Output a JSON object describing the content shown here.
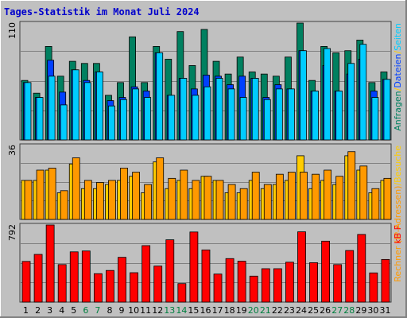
{
  "title": "Tages-Statistik im Monat Juli 2024",
  "colors": {
    "frame": "#c0c0c0",
    "plot_bg": "#c0c0c0",
    "grid": "#808080",
    "title": "#0000cc",
    "weekday_label": "#000000",
    "weekend_label": "#008040",
    "anfragen": "#008060",
    "dateien": "#0040ff",
    "seiten": "#00ccff",
    "besuche": "#ffcc00",
    "rechner": "#ff9900",
    "kb": "#ff0000"
  },
  "chart_data": [
    {
      "type": "bar",
      "panel": "top",
      "ylabel_tick": "110",
      "ylim": [
        0,
        110
      ],
      "legend_text": [
        "Anfragen",
        "/",
        "Dateien",
        "/",
        "Seiten"
      ],
      "categories": [
        "1",
        "2",
        "3",
        "4",
        "5",
        "6",
        "7",
        "8",
        "9",
        "10",
        "11",
        "12",
        "13",
        "14",
        "15",
        "16",
        "17",
        "18",
        "19",
        "20",
        "21",
        "22",
        "23",
        "24",
        "25",
        "26",
        "27",
        "28",
        "29",
        "30",
        "31"
      ],
      "weekend_days": [
        "6",
        "7",
        "13",
        "14",
        "20",
        "21",
        "27",
        "28"
      ],
      "series": [
        {
          "name": "Anfragen",
          "values": [
            56,
            44,
            88,
            60,
            74,
            72,
            72,
            42,
            54,
            97,
            54,
            88,
            76,
            102,
            70,
            104,
            74,
            62,
            78,
            64,
            62,
            60,
            78,
            110,
            56,
            88,
            82,
            84,
            94,
            54,
            64
          ]
        },
        {
          "name": "Dateien",
          "values": [
            54,
            40,
            75,
            45,
            66,
            56,
            64,
            37,
            40,
            50,
            46,
            82,
            42,
            58,
            48,
            61,
            60,
            52,
            60,
            58,
            40,
            52,
            48,
            84,
            46,
            70,
            46,
            62,
            76,
            46,
            57
          ]
        },
        {
          "name": "Seiten",
          "values": [
            54,
            40,
            60,
            33,
            66,
            54,
            64,
            32,
            38,
            48,
            40,
            82,
            42,
            58,
            42,
            50,
            58,
            48,
            40,
            58,
            38,
            48,
            48,
            84,
            46,
            86,
            46,
            72,
            90,
            40,
            57
          ]
        }
      ]
    },
    {
      "type": "bar",
      "panel": "middle",
      "ylabel_tick": "36",
      "ylim": [
        0,
        36
      ],
      "legend_text": [
        "Rechner (IP-Adressen)",
        "/",
        "Besuche"
      ],
      "categories": [
        "1",
        "2",
        "3",
        "4",
        "5",
        "6",
        "7",
        "8",
        "9",
        "10",
        "11",
        "12",
        "13",
        "14",
        "15",
        "16",
        "17",
        "18",
        "19",
        "20",
        "21",
        "22",
        "23",
        "24",
        "25",
        "26",
        "27",
        "28",
        "29",
        "30",
        "31"
      ],
      "series": [
        {
          "name": "Besuche",
          "values": [
            19,
            19,
            24,
            13,
            27,
            15,
            15,
            17,
            19,
            21,
            13,
            28,
            15,
            19,
            15,
            21,
            19,
            13,
            13,
            19,
            15,
            17,
            19,
            31,
            15,
            19,
            17,
            31,
            24,
            13,
            19
          ]
        },
        {
          "name": "Rechner (IP-Adressen)",
          "values": [
            19,
            24,
            25,
            14,
            30,
            19,
            18,
            19,
            25,
            23,
            17,
            30,
            20,
            24,
            19,
            21,
            19,
            17,
            15,
            23,
            17,
            22,
            23,
            23,
            22,
            24,
            21,
            33,
            26,
            15,
            20
          ]
        }
      ]
    },
    {
      "type": "bar",
      "panel": "bottom",
      "ylabel_tick": "792",
      "ylim": [
        0,
        792
      ],
      "legend_text": [
        "kB F"
      ],
      "categories": [
        "1",
        "2",
        "3",
        "4",
        "5",
        "6",
        "7",
        "8",
        "9",
        "10",
        "11",
        "12",
        "13",
        "14",
        "15",
        "16",
        "17",
        "18",
        "19",
        "20",
        "21",
        "22",
        "23",
        "24",
        "25",
        "26",
        "27",
        "28",
        "29",
        "30",
        "31"
      ],
      "series": [
        {
          "name": "kB F",
          "values": [
            418,
            490,
            792,
            385,
            516,
            525,
            292,
            325,
            460,
            302,
            580,
            370,
            640,
            190,
            720,
            536,
            288,
            447,
            420,
            267,
            343,
            343,
            410,
            722,
            405,
            626,
            385,
            530,
            695,
            300,
            438
          ]
        }
      ]
    }
  ]
}
